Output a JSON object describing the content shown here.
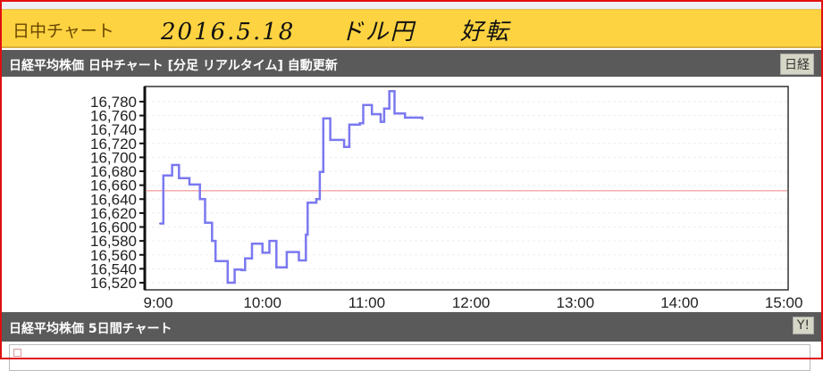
{
  "header": {
    "title": "日中チャート",
    "handwritten_note": "2016.5.18 ドル円 好転"
  },
  "intraday": {
    "title": "日経平均株価 日中チャート [分足 リアルタイム] 自動更新",
    "button": "日経"
  },
  "fiveday": {
    "title": "日経平均株価 5日間チャート",
    "button": "Y!"
  },
  "chart_data": {
    "type": "line",
    "title": "",
    "xlabel": "",
    "ylabel": "",
    "x_ticks": [
      "9:00",
      "10:00",
      "11:00",
      "12:00",
      "13:00",
      "14:00",
      "15:00"
    ],
    "y_ticks": [
      "16,520",
      "16,540",
      "16,560",
      "16,580",
      "16,600",
      "16,620",
      "16,640",
      "16,660",
      "16,680",
      "16,700",
      "16,720",
      "16,740",
      "16,760",
      "16,780"
    ],
    "ylim": [
      16510,
      16800
    ],
    "reference_line": {
      "value": 16652,
      "color": "#f08080"
    },
    "line_color": "#7b78f0",
    "grid": true,
    "series": [
      {
        "points": [
          [
            "9:01",
            16605
          ],
          [
            "9:03",
            16674
          ],
          [
            "9:08",
            16689
          ],
          [
            "9:12",
            16670
          ],
          [
            "9:18",
            16661
          ],
          [
            "9:24",
            16640
          ],
          [
            "9:27",
            16606
          ],
          [
            "9:31",
            16580
          ],
          [
            "9:33",
            16551
          ],
          [
            "9:40",
            16520
          ],
          [
            "9:44",
            16539
          ],
          [
            "9:48",
            16538
          ],
          [
            "9:50",
            16555
          ],
          [
            "9:54",
            16576
          ],
          [
            "10:00",
            16563
          ],
          [
            "10:04",
            16580
          ],
          [
            "10:08",
            16542
          ],
          [
            "10:14",
            16564
          ],
          [
            "10:21",
            16552
          ],
          [
            "10:25",
            16589
          ],
          [
            "10:26",
            16635
          ],
          [
            "10:31",
            16640
          ],
          [
            "10:33",
            16679
          ],
          [
            "10:35",
            16756
          ],
          [
            "10:39",
            16725
          ],
          [
            "10:47",
            16715
          ],
          [
            "10:50",
            16747
          ],
          [
            "10:56",
            16749
          ],
          [
            "10:58",
            16775
          ],
          [
            "11:03",
            16762
          ],
          [
            "11:08",
            16751
          ],
          [
            "11:10",
            16770
          ],
          [
            "11:13",
            16795
          ],
          [
            "11:16",
            16763
          ],
          [
            "11:22",
            16757
          ],
          [
            "11:32",
            16755
          ]
        ]
      }
    ]
  }
}
